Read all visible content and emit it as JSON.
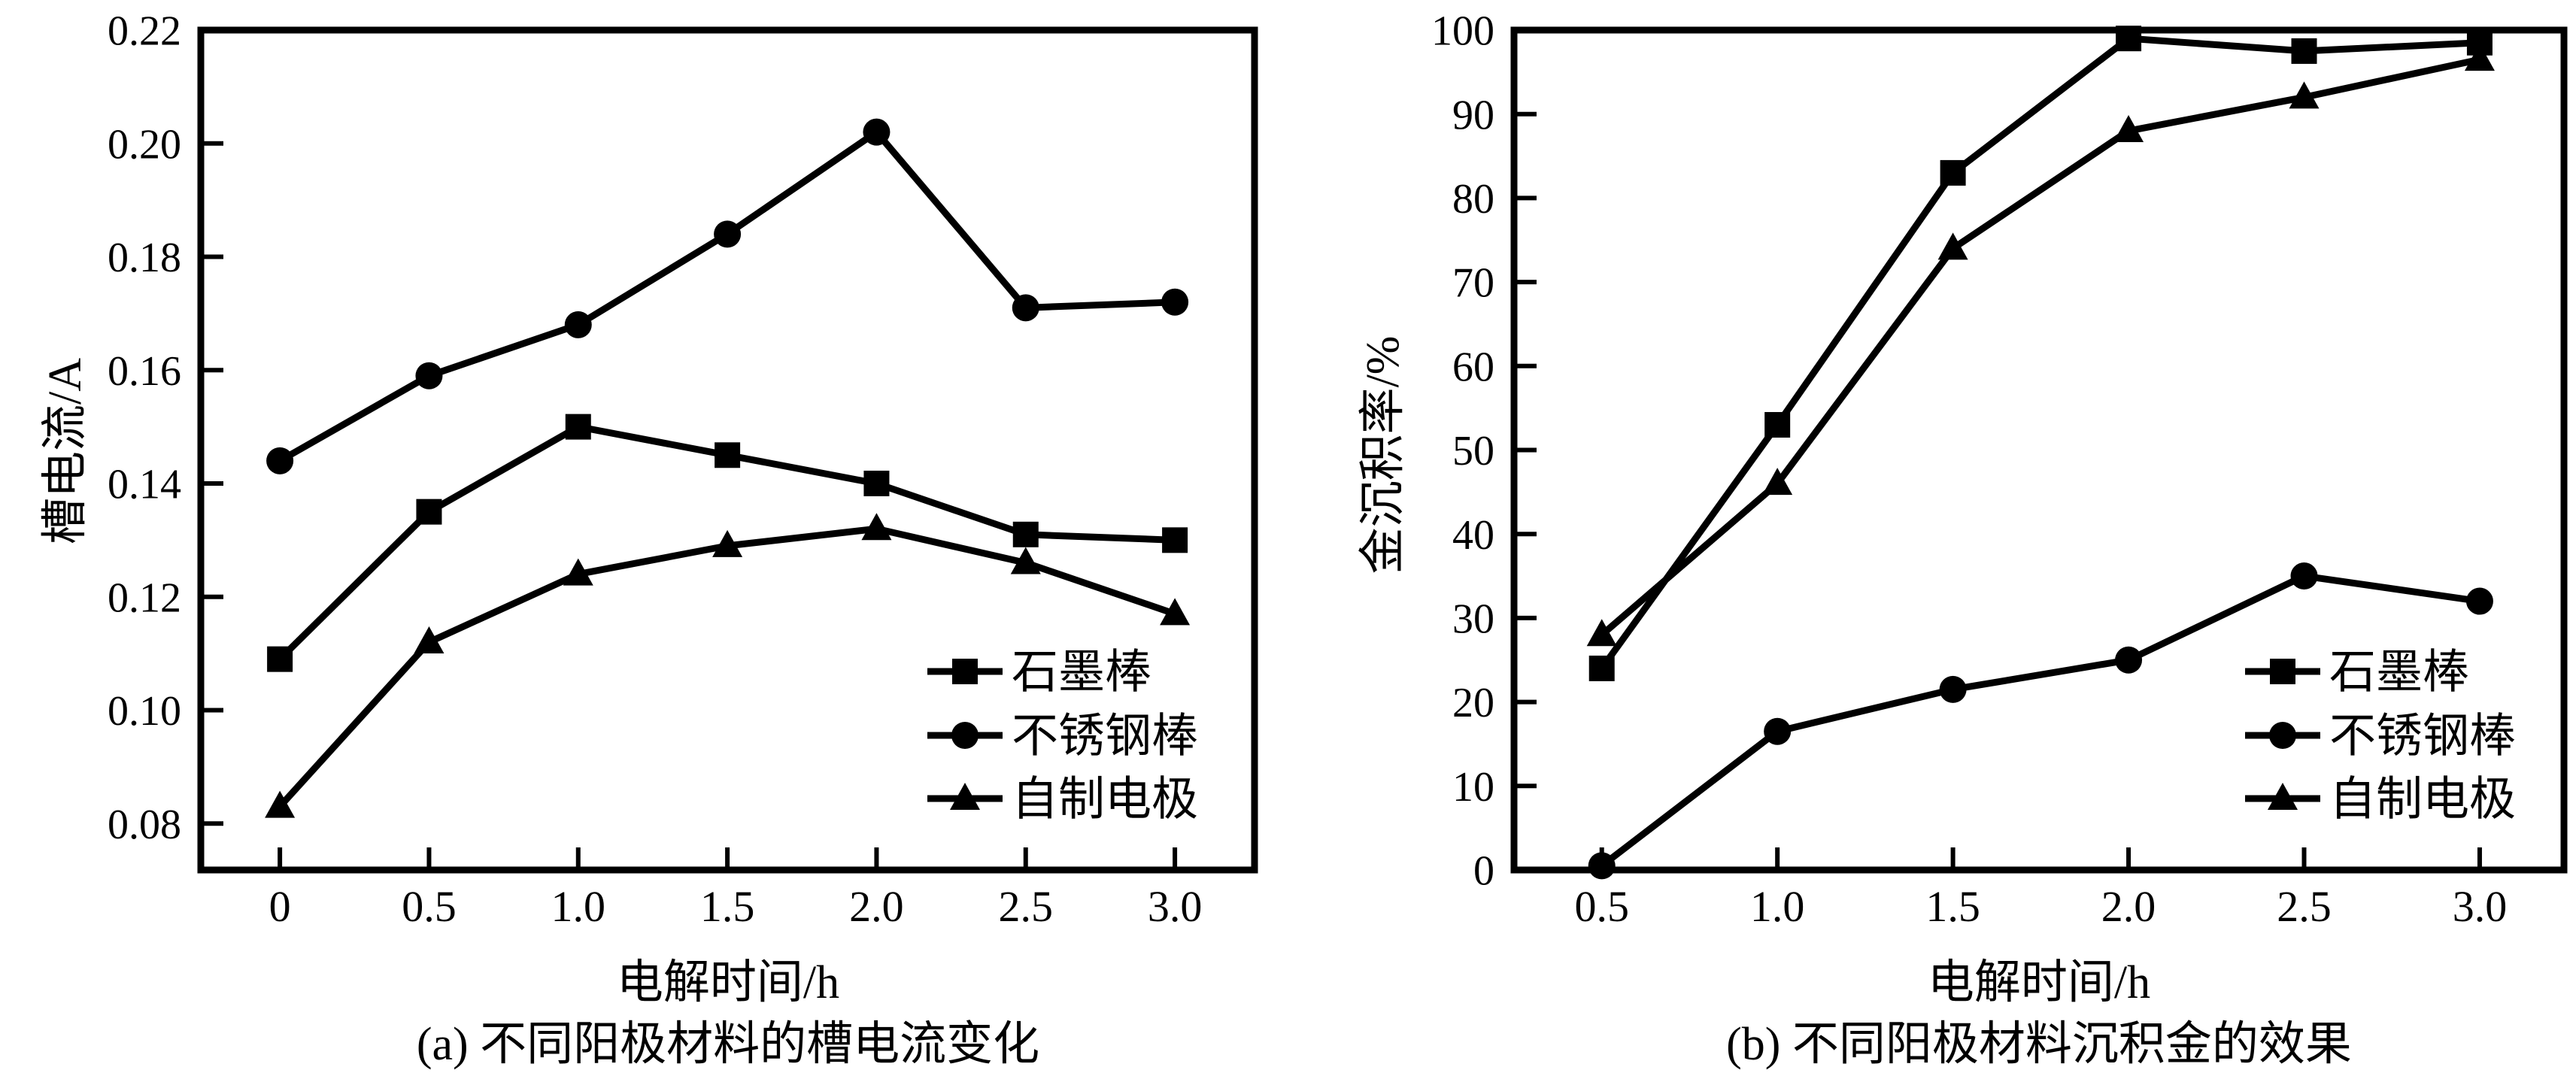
{
  "page": {
    "background": "#ffffff",
    "ink": "#000000"
  },
  "chart_data": [
    {
      "type": "line",
      "panel": "a",
      "caption": "(a) 不同阳极材料的槽电流变化",
      "xlabel": "电解时间/h",
      "ylabel": "槽电流/A",
      "x": [
        0,
        0.5,
        1.0,
        1.5,
        2.0,
        2.5,
        3.0
      ],
      "xlim": [
        -0.265,
        3.267
      ],
      "ylim": [
        0.0718,
        0.22
      ],
      "xtick_values": [
        0,
        0.5,
        1.0,
        1.5,
        2.0,
        2.5,
        3.0
      ],
      "xtick_labels": [
        "0",
        "0.5",
        "1.0",
        "1.5",
        "2.0",
        "2.5",
        "3.0"
      ],
      "ytick_values": [
        0.08,
        0.1,
        0.12,
        0.14,
        0.16,
        0.18,
        0.2,
        0.22
      ],
      "ytick_labels": [
        "0.08",
        "0.10",
        "0.12",
        "0.14",
        "0.16",
        "0.18",
        "0.20",
        "0.22"
      ],
      "grid": false,
      "legend_position": "inside-lower-right",
      "series": [
        {
          "name": "石墨棒",
          "marker": "square",
          "values": [
            0.109,
            0.135,
            0.15,
            0.145,
            0.14,
            0.131,
            0.13
          ]
        },
        {
          "name": "不锈钢棒",
          "marker": "circle",
          "values": [
            0.144,
            0.159,
            0.168,
            0.184,
            0.202,
            0.171,
            0.172
          ]
        },
        {
          "name": "自制电极",
          "marker": "triangle",
          "values": [
            0.083,
            0.112,
            0.124,
            0.129,
            0.132,
            0.126,
            0.117
          ]
        }
      ]
    },
    {
      "type": "line",
      "panel": "b",
      "caption": "(b) 不同阳极材料沉积金的效果",
      "xlabel": "电解时间/h",
      "ylabel": "金沉积率/%",
      "x": [
        0.5,
        1.0,
        1.5,
        2.0,
        2.5,
        3.0
      ],
      "xlim": [
        0.25,
        3.24
      ],
      "ylim": [
        0,
        100
      ],
      "xtick_values": [
        0.5,
        1.0,
        1.5,
        2.0,
        2.5,
        3.0
      ],
      "xtick_labels": [
        "0.5",
        "1.0",
        "1.5",
        "2.0",
        "2.5",
        "3.0"
      ],
      "ytick_values": [
        0,
        10,
        20,
        30,
        40,
        50,
        60,
        70,
        80,
        90,
        100
      ],
      "ytick_labels": [
        "0",
        "10",
        "20",
        "30",
        "40",
        "50",
        "60",
        "70",
        "80",
        "90",
        "100"
      ],
      "grid": false,
      "legend_position": "inside-lower-right",
      "series": [
        {
          "name": "石墨棒",
          "marker": "square",
          "values": [
            24,
            53,
            83,
            99,
            97.5,
            98.5
          ]
        },
        {
          "name": "不锈钢棒",
          "marker": "circle",
          "values": [
            0.5,
            16.5,
            21.5,
            25,
            35,
            32
          ]
        },
        {
          "name": "自制电极",
          "marker": "triangle",
          "values": [
            28,
            46,
            74,
            88,
            92,
            96.5
          ]
        }
      ]
    }
  ]
}
